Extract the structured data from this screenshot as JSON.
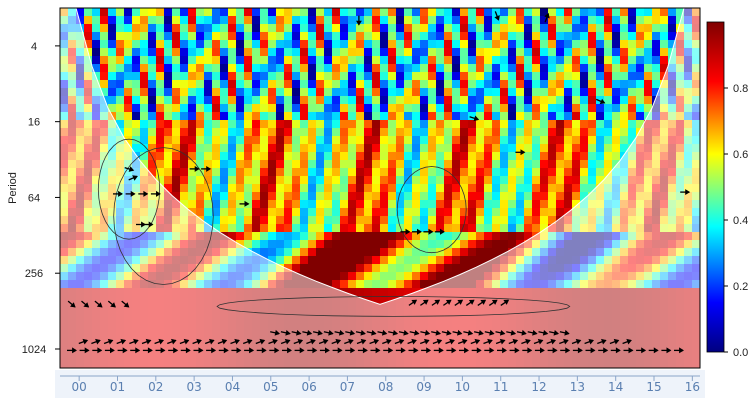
{
  "chart_data": {
    "type": "heatmap",
    "title": "",
    "ylabel": "Period",
    "xlabel": "",
    "x_ticks": [
      "00",
      "01",
      "02",
      "03",
      "04",
      "05",
      "06",
      "07",
      "08",
      "09",
      "10",
      "11",
      "12",
      "13",
      "14",
      "15",
      "16"
    ],
    "x_range": [
      -0.5,
      16.2
    ],
    "y_ticks": [
      4,
      16,
      64,
      256,
      1024
    ],
    "y_scale": "log2",
    "y_range": [
      2,
      1450
    ],
    "colorbar": {
      "ticks": [
        0.0,
        0.2,
        0.4,
        0.6,
        0.8
      ],
      "range": [
        0,
        1
      ],
      "colors": [
        "#000080",
        "#0000ff",
        "#00ffff",
        "#ffff00",
        "#ff0000",
        "#800000"
      ]
    },
    "significance_contour": true,
    "cone_of_influence": true,
    "phase_arrows": true
  }
}
